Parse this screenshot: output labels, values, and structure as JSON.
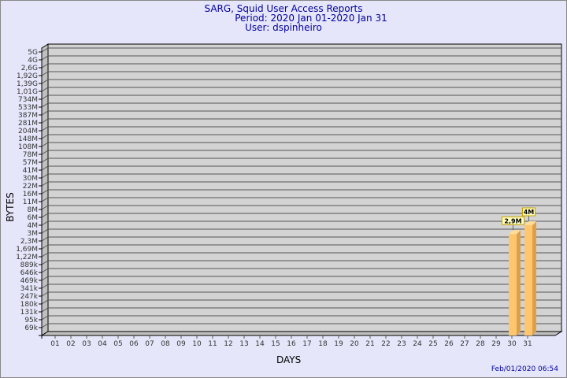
{
  "header": {
    "title": "SARG, Squid User Access Reports",
    "period": "Period: 2020 Jan 01-2020 Jan 31",
    "user": "User: dspinheiro"
  },
  "footer": {
    "timestamp": "Feb/01/2020 06:54"
  },
  "chart_data": {
    "type": "bar",
    "xlabel": "DAYS",
    "ylabel": "BYTES",
    "y_scale": "log",
    "y_tick_labels": [
      "5G",
      "4G",
      "2,6G",
      "1,92G",
      "1,39G",
      "1,01G",
      "734M",
      "533M",
      "387M",
      "281M",
      "204M",
      "148M",
      "108M",
      "78M",
      "57M",
      "41M",
      "30M",
      "22M",
      "16M",
      "11M",
      "8M",
      "6M",
      "4M",
      "3M",
      "2,3M",
      "1,69M",
      "1,22M",
      "889k",
      "646k",
      "469k",
      "341k",
      "247k",
      "180k",
      "131k",
      "95k",
      "69k"
    ],
    "categories": [
      "01",
      "02",
      "03",
      "04",
      "05",
      "06",
      "07",
      "08",
      "09",
      "10",
      "11",
      "12",
      "13",
      "14",
      "15",
      "16",
      "17",
      "18",
      "19",
      "20",
      "21",
      "22",
      "23",
      "24",
      "25",
      "26",
      "27",
      "28",
      "29",
      "30",
      "31"
    ],
    "values": [
      null,
      null,
      null,
      null,
      null,
      null,
      null,
      null,
      null,
      null,
      null,
      null,
      null,
      null,
      null,
      null,
      null,
      null,
      null,
      null,
      null,
      null,
      null,
      null,
      null,
      null,
      null,
      null,
      null,
      2900000,
      4000000
    ],
    "data_labels": {
      "30": "2,9M",
      "31": "4M"
    },
    "grid": true,
    "colors": {
      "bar_front": "#ffc66e",
      "bar_side": "#dca04a",
      "bar_top": "#ffdd99",
      "wall": "#d3d3d3",
      "label_bg": "#ffffc0",
      "label_border": "#c8a000",
      "title": "#00009c"
    }
  }
}
